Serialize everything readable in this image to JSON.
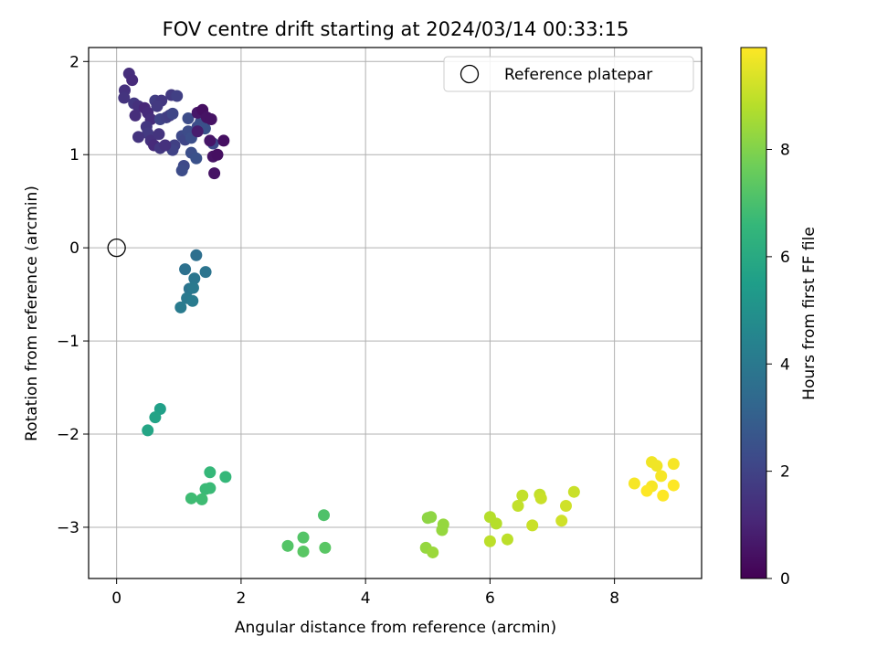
{
  "chart_data": {
    "type": "scatter",
    "title": "FOV centre drift starting at 2024/03/14 00:33:15",
    "xlabel": "Angular distance from reference (arcmin)",
    "ylabel": "Rotation from reference (arcmin)",
    "xlim": [
      -0.45,
      9.4
    ],
    "ylim": [
      -3.55,
      2.15
    ],
    "xticks": [
      0,
      2,
      4,
      6,
      8
    ],
    "yticks": [
      -3,
      -2,
      -1,
      0,
      1,
      2
    ],
    "xtick_labels": [
      "0",
      "2",
      "4",
      "6",
      "8"
    ],
    "ytick_labels": [
      "−3",
      "−2",
      "−1",
      "0",
      "1",
      "2"
    ],
    "grid": true,
    "legend": {
      "position": "top-right",
      "entries": [
        "Reference platepar"
      ]
    },
    "reference_point": {
      "x": 0,
      "y": 0,
      "label": "Reference platepar"
    },
    "colorbar": {
      "label": "Hours from first FF file",
      "colormap": "viridis",
      "range": [
        0,
        9.9
      ],
      "ticks": [
        0,
        2,
        4,
        6,
        8
      ],
      "tick_labels": [
        "0",
        "2",
        "4",
        "6",
        "8"
      ]
    },
    "colormap_stops": [
      "#440154",
      "#482878",
      "#3e4989",
      "#31688e",
      "#26828e",
      "#1f9e89",
      "#35b779",
      "#6ece58",
      "#b5de2b",
      "#fde725"
    ],
    "points": [
      {
        "x": 0.2,
        "y": 1.87,
        "h": 1.3
      },
      {
        "x": 0.25,
        "y": 1.8,
        "h": 1.2
      },
      {
        "x": 0.13,
        "y": 1.69,
        "h": 1.4
      },
      {
        "x": 0.12,
        "y": 1.61,
        "h": 1.5
      },
      {
        "x": 0.28,
        "y": 1.55,
        "h": 1.6
      },
      {
        "x": 0.35,
        "y": 1.52,
        "h": 1.4
      },
      {
        "x": 0.3,
        "y": 1.42,
        "h": 1.3
      },
      {
        "x": 0.45,
        "y": 1.5,
        "h": 1.1
      },
      {
        "x": 0.5,
        "y": 1.45,
        "h": 1.2
      },
      {
        "x": 0.55,
        "y": 1.38,
        "h": 1.3
      },
      {
        "x": 0.48,
        "y": 1.3,
        "h": 1.6
      },
      {
        "x": 0.5,
        "y": 1.23,
        "h": 1.7
      },
      {
        "x": 0.35,
        "y": 1.19,
        "h": 1.5
      },
      {
        "x": 0.55,
        "y": 1.15,
        "h": 1.4
      },
      {
        "x": 0.6,
        "y": 1.1,
        "h": 1.2
      },
      {
        "x": 0.68,
        "y": 1.22,
        "h": 1.5
      },
      {
        "x": 0.62,
        "y": 1.58,
        "h": 1.8
      },
      {
        "x": 0.72,
        "y": 1.58,
        "h": 1.6
      },
      {
        "x": 0.65,
        "y": 1.52,
        "h": 1.7
      },
      {
        "x": 0.7,
        "y": 1.38,
        "h": 2.0
      },
      {
        "x": 0.8,
        "y": 1.4,
        "h": 1.9
      },
      {
        "x": 0.85,
        "y": 1.42,
        "h": 1.8
      },
      {
        "x": 0.9,
        "y": 1.44,
        "h": 2.1
      },
      {
        "x": 0.88,
        "y": 1.64,
        "h": 1.7
      },
      {
        "x": 0.97,
        "y": 1.63,
        "h": 1.9
      },
      {
        "x": 0.93,
        "y": 1.1,
        "h": 1.9
      },
      {
        "x": 0.9,
        "y": 1.05,
        "h": 2.0
      },
      {
        "x": 0.7,
        "y": 1.07,
        "h": 1.6
      },
      {
        "x": 0.78,
        "y": 1.1,
        "h": 1.4
      },
      {
        "x": 1.05,
        "y": 1.2,
        "h": 2.2
      },
      {
        "x": 1.1,
        "y": 1.16,
        "h": 2.1
      },
      {
        "x": 1.15,
        "y": 1.25,
        "h": 2.3
      },
      {
        "x": 1.2,
        "y": 1.18,
        "h": 2.4
      },
      {
        "x": 1.08,
        "y": 0.88,
        "h": 2.2
      },
      {
        "x": 1.05,
        "y": 0.83,
        "h": 2.3
      },
      {
        "x": 1.2,
        "y": 1.02,
        "h": 2.4
      },
      {
        "x": 1.28,
        "y": 0.96,
        "h": 2.5
      },
      {
        "x": 1.15,
        "y": 1.39,
        "h": 2.3
      },
      {
        "x": 1.3,
        "y": 1.3,
        "h": 2.2
      },
      {
        "x": 1.35,
        "y": 1.35,
        "h": 2.4
      },
      {
        "x": 1.42,
        "y": 1.28,
        "h": 2.5
      },
      {
        "x": 1.3,
        "y": 1.45,
        "h": 0.6
      },
      {
        "x": 1.38,
        "y": 1.48,
        "h": 0.4
      },
      {
        "x": 1.45,
        "y": 1.4,
        "h": 0.5
      },
      {
        "x": 1.52,
        "y": 1.38,
        "h": 0.5
      },
      {
        "x": 1.55,
        "y": 1.12,
        "h": 2.2
      },
      {
        "x": 1.5,
        "y": 1.15,
        "h": 0.6
      },
      {
        "x": 1.55,
        "y": 0.98,
        "h": 0.5
      },
      {
        "x": 1.62,
        "y": 1.0,
        "h": 0.4
      },
      {
        "x": 1.72,
        "y": 1.15,
        "h": 0.4
      },
      {
        "x": 1.57,
        "y": 0.8,
        "h": 0.5
      },
      {
        "x": 1.3,
        "y": 1.25,
        "h": 0.8
      },
      {
        "x": 1.28,
        "y": -0.08,
        "h": 3.6
      },
      {
        "x": 1.1,
        "y": -0.23,
        "h": 3.7
      },
      {
        "x": 1.43,
        "y": -0.26,
        "h": 3.8
      },
      {
        "x": 1.25,
        "y": -0.33,
        "h": 3.9
      },
      {
        "x": 1.17,
        "y": -0.44,
        "h": 3.8
      },
      {
        "x": 1.23,
        "y": -0.43,
        "h": 4.0
      },
      {
        "x": 1.13,
        "y": -0.54,
        "h": 4.0
      },
      {
        "x": 1.22,
        "y": -0.57,
        "h": 4.1
      },
      {
        "x": 1.03,
        "y": -0.64,
        "h": 4.1
      },
      {
        "x": 0.7,
        "y": -1.73,
        "h": 5.6
      },
      {
        "x": 0.62,
        "y": -1.82,
        "h": 5.7
      },
      {
        "x": 0.5,
        "y": -1.96,
        "h": 5.8
      },
      {
        "x": 1.5,
        "y": -2.41,
        "h": 6.6
      },
      {
        "x": 1.75,
        "y": -2.46,
        "h": 6.6
      },
      {
        "x": 1.43,
        "y": -2.59,
        "h": 6.7
      },
      {
        "x": 1.5,
        "y": -2.58,
        "h": 6.7
      },
      {
        "x": 1.2,
        "y": -2.69,
        "h": 6.8
      },
      {
        "x": 1.37,
        "y": -2.7,
        "h": 6.8
      },
      {
        "x": 3.33,
        "y": -2.87,
        "h": 7.1
      },
      {
        "x": 3.0,
        "y": -3.11,
        "h": 7.2
      },
      {
        "x": 2.75,
        "y": -3.2,
        "h": 7.2
      },
      {
        "x": 3.0,
        "y": -3.26,
        "h": 7.3
      },
      {
        "x": 3.35,
        "y": -3.22,
        "h": 7.3
      },
      {
        "x": 5.05,
        "y": -2.89,
        "h": 8.2
      },
      {
        "x": 5.0,
        "y": -2.9,
        "h": 8.2
      },
      {
        "x": 5.25,
        "y": -2.97,
        "h": 8.3
      },
      {
        "x": 5.23,
        "y": -3.03,
        "h": 8.3
      },
      {
        "x": 4.97,
        "y": -3.22,
        "h": 8.3
      },
      {
        "x": 5.08,
        "y": -3.27,
        "h": 8.4
      },
      {
        "x": 6.0,
        "y": -2.89,
        "h": 8.8
      },
      {
        "x": 6.1,
        "y": -2.96,
        "h": 8.8
      },
      {
        "x": 6.0,
        "y": -3.15,
        "h": 8.9
      },
      {
        "x": 6.28,
        "y": -3.13,
        "h": 8.9
      },
      {
        "x": 6.52,
        "y": -2.66,
        "h": 9.0
      },
      {
        "x": 6.45,
        "y": -2.77,
        "h": 9.0
      },
      {
        "x": 6.8,
        "y": -2.65,
        "h": 9.0
      },
      {
        "x": 6.82,
        "y": -2.69,
        "h": 9.1
      },
      {
        "x": 6.68,
        "y": -2.98,
        "h": 9.1
      },
      {
        "x": 7.35,
        "y": -2.62,
        "h": 9.1
      },
      {
        "x": 7.22,
        "y": -2.77,
        "h": 9.2
      },
      {
        "x": 7.15,
        "y": -2.93,
        "h": 9.2
      },
      {
        "x": 8.6,
        "y": -2.3,
        "h": 9.7
      },
      {
        "x": 8.68,
        "y": -2.34,
        "h": 9.7
      },
      {
        "x": 8.95,
        "y": -2.32,
        "h": 9.8
      },
      {
        "x": 8.75,
        "y": -2.45,
        "h": 9.8
      },
      {
        "x": 8.32,
        "y": -2.53,
        "h": 9.8
      },
      {
        "x": 8.6,
        "y": -2.56,
        "h": 9.8
      },
      {
        "x": 8.95,
        "y": -2.55,
        "h": 9.9
      },
      {
        "x": 8.52,
        "y": -2.61,
        "h": 9.9
      },
      {
        "x": 8.78,
        "y": -2.66,
        "h": 9.9
      }
    ]
  }
}
